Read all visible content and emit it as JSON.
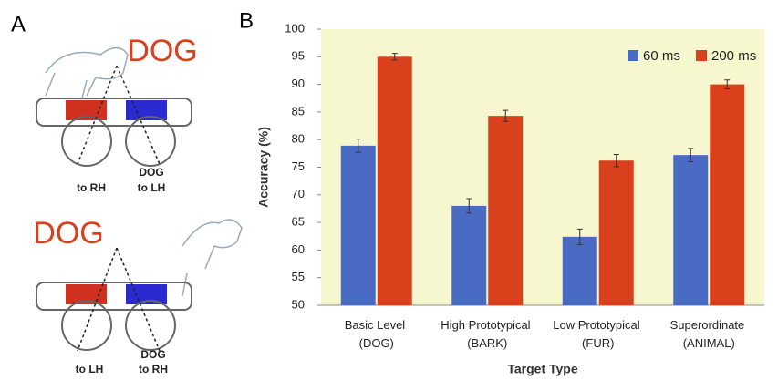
{
  "panels": {
    "a": "A",
    "b": "B"
  },
  "diagram": {
    "top": {
      "word": "DOG",
      "left_label": "to RH",
      "right_word": "DOG",
      "right_label": "to LH"
    },
    "bottom": {
      "word": "DOG",
      "left_label": "to LH",
      "right_word": "DOG",
      "right_label": "to RH"
    }
  },
  "chart_data": {
    "type": "bar",
    "y_label": "Accuracy (%)",
    "x_label": "Target Type",
    "categories": [
      "Basic Level (DOG)",
      "High Prototypical (BARK)",
      "Low Prototypical (FUR)",
      "Superordinate (ANIMAL)"
    ],
    "series": [
      {
        "name": "60 ms",
        "color": "#4a6bc4",
        "values": [
          78.9,
          68,
          62.4,
          77.2
        ],
        "errors": [
          1.2,
          1.3,
          1.4,
          1.2
        ]
      },
      {
        "name": "200 ms",
        "color": "#d9401c",
        "values": [
          95,
          84.3,
          76.2,
          90
        ],
        "errors": [
          0.6,
          1.0,
          1.1,
          0.8
        ]
      }
    ],
    "ylim": [
      50,
      100
    ],
    "yticks": [
      50,
      55,
      60,
      65,
      70,
      75,
      80,
      85,
      90,
      95,
      100
    ],
    "legend": "top-right",
    "background": "#f7f7cf"
  }
}
